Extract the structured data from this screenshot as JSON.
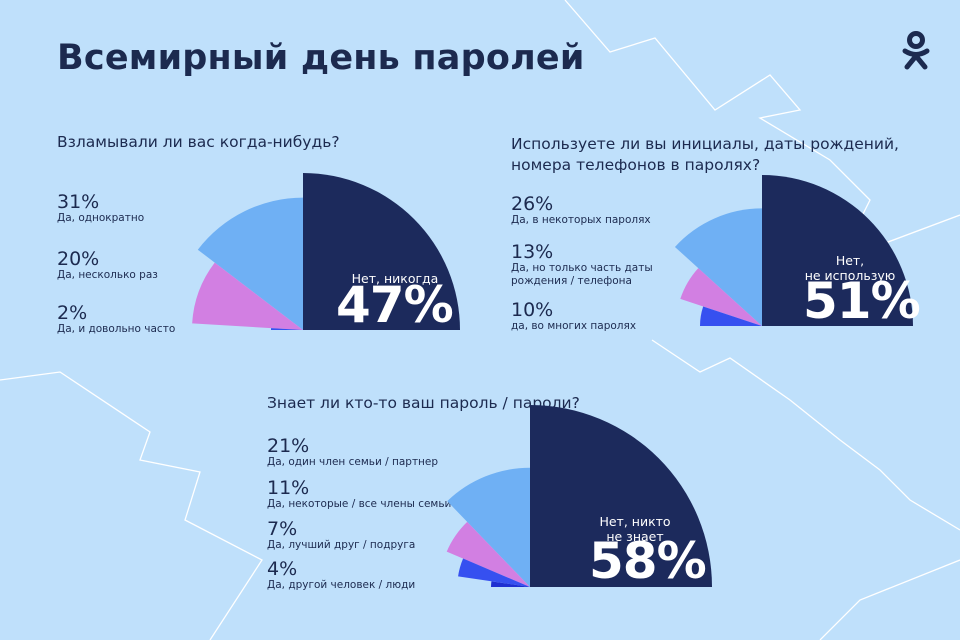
{
  "title": "Всемирный день паролей",
  "colors": {
    "background": "#bfe0fb",
    "navy": "#1c2a5c",
    "light_blue": "#6fb0f4",
    "pink": "#d27fe2",
    "royal_blue": "#3650f0",
    "deep_blue": "#1f2fd1",
    "white_line": "#ffffff"
  },
  "logo_icon": "ok-logo-icon",
  "chart_data": [
    {
      "type": "pie",
      "variant": "half-rose",
      "question": "Взламывали ли вас когда-нибудь?",
      "segments": [
        {
          "value_label": "47%",
          "value": 47,
          "label": "Нет, никогда",
          "color": "#1c2a5c"
        },
        {
          "value_label": "31%",
          "value": 31,
          "label": "Да, однократно",
          "color": "#6fb0f4"
        },
        {
          "value_label": "20%",
          "value": 20,
          "label": "Да, несколько раз",
          "color": "#d27fe2"
        },
        {
          "value_label": "2%",
          "value": 2,
          "label": "Да, и довольно часто",
          "color": "#3650f0"
        }
      ]
    },
    {
      "type": "pie",
      "variant": "half-rose",
      "question": "Используете ли вы инициалы, даты рождений,\nномера телефонов в паролях?",
      "segments": [
        {
          "value_label": "51%",
          "value": 51,
          "label": "Нет,\nне использую",
          "color": "#1c2a5c"
        },
        {
          "value_label": "26%",
          "value": 26,
          "label": "Да, в некоторых паролях",
          "color": "#6fb0f4"
        },
        {
          "value_label": "13%",
          "value": 13,
          "label": "Да, но только часть даты\nрождения / телефона",
          "color": "#d27fe2"
        },
        {
          "value_label": "10%",
          "value": 10,
          "label": "да, во многих паролях",
          "color": "#3650f0"
        }
      ]
    },
    {
      "type": "pie",
      "variant": "half-rose",
      "question": "Знает ли кто-то ваш пароль / пароли?",
      "segments": [
        {
          "value_label": "58%",
          "value": 58,
          "label": "Нет, никто\nне знает",
          "color": "#1c2a5c"
        },
        {
          "value_label": "21%",
          "value": 21,
          "label": "Да, один член семьи / партнер",
          "color": "#6fb0f4"
        },
        {
          "value_label": "11%",
          "value": 11,
          "label": "Да, некоторые / все члены семьи",
          "color": "#d27fe2"
        },
        {
          "value_label": "7%",
          "value": 7,
          "label": "Да, лучший друг / подруга",
          "color": "#3650f0"
        },
        {
          "value_label": "4%",
          "value": 4,
          "label": "Да, другой человек / люди",
          "color": "#1f2fd1"
        }
      ]
    }
  ]
}
